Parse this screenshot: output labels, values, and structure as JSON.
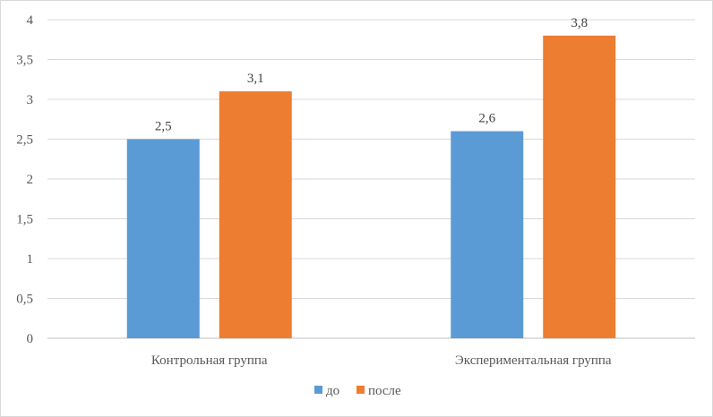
{
  "chart_data": {
    "type": "bar",
    "title": "",
    "xlabel": "",
    "ylabel": "",
    "categories": [
      "Контрольная группа",
      "Экспериментальная группа"
    ],
    "series": [
      {
        "name": "до",
        "values": [
          2.5,
          2.6
        ],
        "labels": [
          "2,5",
          "2,6"
        ],
        "color": "#5b9bd5"
      },
      {
        "name": "после",
        "values": [
          3.1,
          3.8
        ],
        "labels": [
          "3,1",
          "3,8"
        ],
        "color": "#ed7d31"
      }
    ],
    "ylim": [
      0,
      4
    ],
    "yticks": [
      0,
      0.5,
      1,
      1.5,
      2,
      2.5,
      3,
      3.5,
      4
    ],
    "ytick_labels": [
      "0",
      "0,5",
      "1",
      "1,5",
      "2",
      "2,5",
      "3",
      "3,5",
      "4"
    ],
    "grid": true,
    "legend_position": "bottom"
  }
}
